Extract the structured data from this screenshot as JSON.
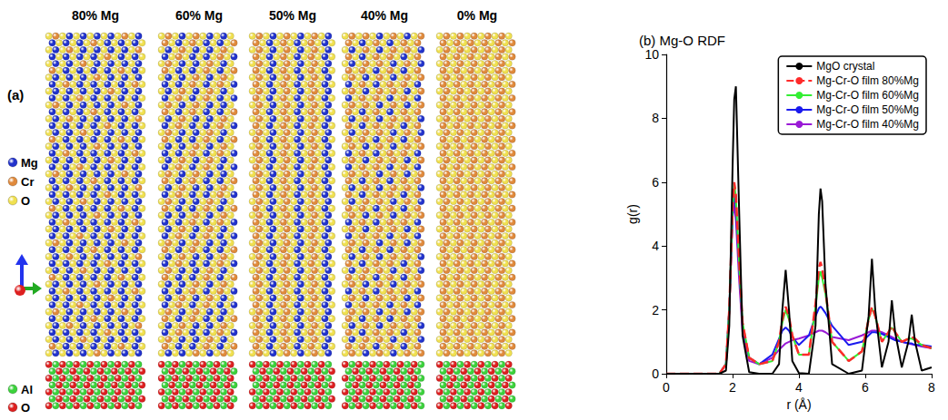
{
  "panel_a": {
    "label": "(a)",
    "columns": [
      {
        "label": "80% Mg",
        "mg_percent": 80
      },
      {
        "label": "60% Mg",
        "mg_percent": 60
      },
      {
        "label": "50% Mg",
        "mg_percent": 50
      },
      {
        "label": "40% Mg",
        "mg_percent": 40
      },
      {
        "label": "0% Mg",
        "mg_percent": 0
      }
    ],
    "atoms": [
      {
        "name": "Mg",
        "color": "#2233cc"
      },
      {
        "name": "Cr",
        "color": "#e08a3c"
      },
      {
        "name": "O",
        "color": "#f0e050"
      }
    ],
    "substrate_atoms": [
      {
        "name": "Al",
        "color": "#3cd23c"
      },
      {
        "name": "O",
        "color": "#dd2020"
      }
    ]
  },
  "chart_data": {
    "type": "line",
    "title": "(b) Mg-O RDF",
    "x_label": "r (Å)",
    "y_label": "g(r)",
    "xlim": [
      0,
      8
    ],
    "xticks": [
      0,
      2,
      4,
      6,
      8
    ],
    "ylim": [
      0,
      10
    ],
    "yticks": [
      0,
      2,
      4,
      6,
      8,
      10
    ],
    "grid": false,
    "legend": "upper right",
    "x": [
      0,
      1.6,
      1.8,
      1.9,
      2.0,
      2.05,
      2.1,
      2.2,
      2.3,
      2.5,
      2.8,
      3.2,
      3.4,
      3.5,
      3.6,
      3.7,
      3.8,
      4.0,
      4.3,
      4.5,
      4.6,
      4.65,
      4.7,
      4.8,
      5.0,
      5.5,
      5.9,
      6.1,
      6.2,
      6.3,
      6.5,
      6.7,
      6.8,
      6.9,
      7.1,
      7.3,
      7.4,
      7.5,
      7.7,
      8.0
    ],
    "series": [
      {
        "name": "MgO crystal",
        "color": "#000000",
        "line_style": "solid",
        "values": [
          0,
          0,
          0.1,
          1.5,
          6.5,
          8.6,
          9.0,
          5.0,
          1.2,
          0.05,
          0,
          0,
          0.3,
          2.0,
          3.25,
          2.0,
          0.4,
          0.02,
          0,
          1.5,
          5.0,
          5.8,
          5.4,
          2.8,
          0.3,
          0,
          0.1,
          1.8,
          3.6,
          2.0,
          0.2,
          1.0,
          2.3,
          1.3,
          0.2,
          1.0,
          1.85,
          1.0,
          0.1,
          0.2
        ]
      },
      {
        "name": "Mg-Cr-O film 80%Mg",
        "color": "#ff2a2a",
        "line_style": "dashed",
        "values": [
          0,
          0,
          0.3,
          2.0,
          5.2,
          6.0,
          5.6,
          3.5,
          1.6,
          0.5,
          0.3,
          0.4,
          1.0,
          1.7,
          2.1,
          1.8,
          1.2,
          0.6,
          0.6,
          2.2,
          3.3,
          3.5,
          3.3,
          2.6,
          1.0,
          0.4,
          0.7,
          1.7,
          2.1,
          1.8,
          1.0,
          1.3,
          1.5,
          1.3,
          1.0,
          1.1,
          1.15,
          1.1,
          0.9,
          0.8
        ]
      },
      {
        "name": "Mg-Cr-O film 60%Mg",
        "color": "#33ee33",
        "line_style": "solid",
        "values": [
          0,
          0,
          0.3,
          2.0,
          5.2,
          5.95,
          5.5,
          3.4,
          1.6,
          0.5,
          0.3,
          0.4,
          1.0,
          1.6,
          2.0,
          1.7,
          1.2,
          0.6,
          0.6,
          2.1,
          3.0,
          3.2,
          3.0,
          2.5,
          1.0,
          0.4,
          0.7,
          1.7,
          2.05,
          1.8,
          1.0,
          1.3,
          1.45,
          1.3,
          1.0,
          1.1,
          1.1,
          1.05,
          0.9,
          0.8
        ]
      },
      {
        "name": "Mg-Cr-O film 50%Mg",
        "color": "#1a1aee",
        "line_style": "solid",
        "values": [
          0,
          0,
          0.3,
          2.0,
          5.0,
          5.6,
          5.2,
          3.3,
          1.5,
          0.5,
          0.3,
          0.6,
          1.1,
          1.35,
          1.45,
          1.35,
          1.15,
          0.9,
          1.2,
          1.8,
          2.05,
          2.1,
          2.05,
          1.9,
          1.5,
          0.9,
          1.0,
          1.2,
          1.3,
          1.3,
          1.25,
          1.15,
          1.1,
          1.05,
          1.0,
          0.95,
          0.95,
          0.9,
          0.9,
          0.85
        ]
      },
      {
        "name": "Mg-Cr-O film 40%Mg",
        "color": "#9a1ad6",
        "line_style": "solid",
        "values": [
          0,
          0,
          0.3,
          2.0,
          4.9,
          5.3,
          4.8,
          2.9,
          1.3,
          0.4,
          0.3,
          0.5,
          0.75,
          0.85,
          0.95,
          1.0,
          1.05,
          1.1,
          1.2,
          1.3,
          1.35,
          1.35,
          1.35,
          1.3,
          1.15,
          1.05,
          1.2,
          1.3,
          1.35,
          1.35,
          1.3,
          1.2,
          1.15,
          1.1,
          1.0,
          0.95,
          0.92,
          0.9,
          0.85,
          0.8
        ]
      }
    ]
  }
}
